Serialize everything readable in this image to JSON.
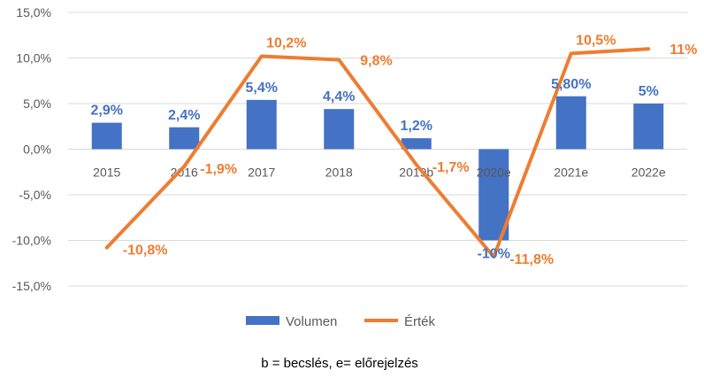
{
  "chart_data": {
    "type": "bar",
    "categories": [
      "2015",
      "2016",
      "2017",
      "2018",
      "2019b",
      "2020e",
      "2021e",
      "2022e"
    ],
    "series": [
      {
        "name": "Volumen",
        "type": "bar",
        "color": "#4472C4",
        "values": [
          2.9,
          2.4,
          5.4,
          4.4,
          1.2,
          -10,
          5.8,
          5
        ],
        "labels": [
          "2,9%",
          "2,4%",
          "5,4%",
          "4,4%",
          "1,2%",
          "-10%",
          "5,80%",
          "5%"
        ]
      },
      {
        "name": "Érték",
        "type": "line",
        "color": "#ED7D31",
        "values": [
          -10.8,
          -1.9,
          10.2,
          9.8,
          -1.7,
          -11.8,
          10.5,
          11
        ],
        "labels": [
          "-10,8%",
          "-1,9%",
          "10,2%",
          "9,8%",
          "-1,7%",
          "-11,8%",
          "10,5%",
          "11%"
        ]
      }
    ],
    "ylim": [
      -15,
      15
    ],
    "yticks": [
      15,
      10,
      5,
      0,
      -5,
      -10,
      -15
    ],
    "ytick_labels": [
      "15,0%",
      "10,0%",
      "5,0%",
      "0,0%",
      "-5,0%",
      "-10,0%",
      "-15,0%"
    ],
    "grid": true,
    "legend_position": "bottom",
    "title": "",
    "xlabel": "",
    "ylabel": ""
  },
  "footnote": "b = becslés, e= előrejelzés"
}
